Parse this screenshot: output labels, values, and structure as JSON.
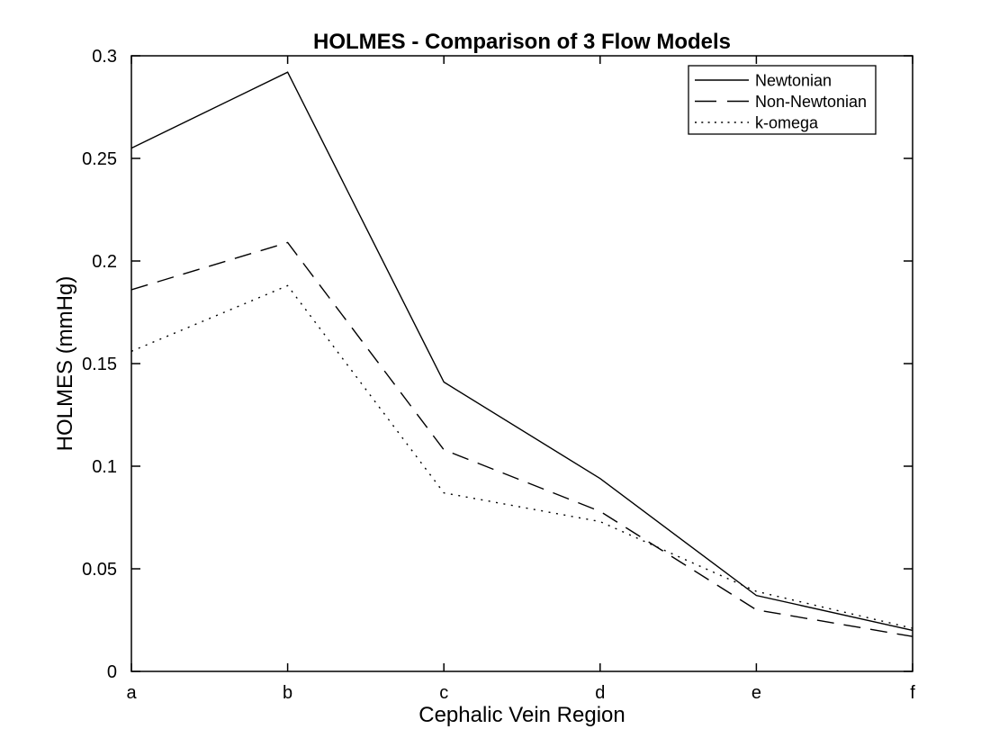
{
  "figure": {
    "background": "#ffffff",
    "line_color": "#000000"
  },
  "chart_data": {
    "type": "line",
    "title": "HOLMES - Comparison of 3 Flow Models",
    "xlabel": "Cephalic Vein Region",
    "ylabel": "HOLMES (mmHg)",
    "categories": [
      "a",
      "b",
      "c",
      "d",
      "e",
      "f"
    ],
    "ylim": [
      0,
      0.3
    ],
    "y_ticks": [
      0,
      0.05,
      0.1,
      0.15,
      0.2,
      0.25,
      0.3
    ],
    "y_tick_labels": [
      "0",
      "0.05",
      "0.1",
      "0.15",
      "0.2",
      "0.25",
      "0.3"
    ],
    "grid": false,
    "legend_position": "top-right",
    "series": [
      {
        "name": "Newtonian",
        "style": "solid",
        "values": [
          0.255,
          0.292,
          0.141,
          0.094,
          0.037,
          0.02
        ]
      },
      {
        "name": "Non-Newtonian",
        "style": "dashed",
        "values": [
          0.186,
          0.209,
          0.108,
          0.078,
          0.03,
          0.017
        ]
      },
      {
        "name": "k-omega",
        "style": "dotted",
        "values": [
          0.156,
          0.188,
          0.087,
          0.073,
          0.039,
          0.021
        ]
      }
    ]
  }
}
